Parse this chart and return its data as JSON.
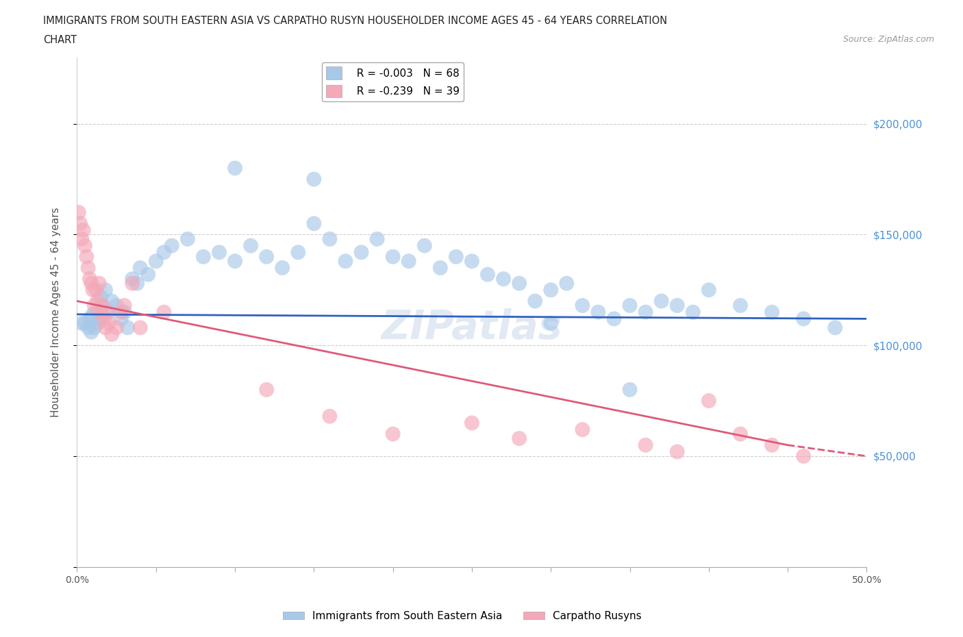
{
  "title_line1": "IMMIGRANTS FROM SOUTH EASTERN ASIA VS CARPATHO RUSYN HOUSEHOLDER INCOME AGES 45 - 64 YEARS CORRELATION",
  "title_line2": "CHART",
  "source": "Source: ZipAtlas.com",
  "ylabel": "Householder Income Ages 45 - 64 years",
  "legend_blue_label": "Immigrants from South Eastern Asia",
  "legend_pink_label": "Carpatho Rusyns",
  "legend_blue_R": "R = -0.003",
  "legend_blue_N": "N = 68",
  "legend_pink_R": "R = -0.239",
  "legend_pink_N": "N = 39",
  "blue_color": "#a8c8e8",
  "pink_color": "#f4a8b8",
  "blue_line_color": "#3060c0",
  "pink_line_color": "#e05878",
  "watermark": "ZIPatlas",
  "xlim": [
    0.0,
    0.5
  ],
  "ylim": [
    0,
    230000
  ],
  "yticks": [
    0,
    50000,
    100000,
    150000,
    200000
  ],
  "ytick_labels": [
    "",
    "$50,000",
    "$100,000",
    "$150,000",
    "$200,000"
  ],
  "xticks": [
    0.0,
    0.05,
    0.1,
    0.15,
    0.2,
    0.25,
    0.3,
    0.35,
    0.4,
    0.45,
    0.5
  ],
  "xtick_labels": [
    "0.0%",
    "",
    "",
    "",
    "",
    "",
    "",
    "",
    "",
    "",
    "50.0%"
  ],
  "grid_color": "#cccccc",
  "background_color": "#ffffff",
  "tick_label_color": "#4a90d9",
  "blue_scatter_x": [
    0.003,
    0.005,
    0.007,
    0.008,
    0.009,
    0.01,
    0.011,
    0.012,
    0.013,
    0.014,
    0.015,
    0.016,
    0.018,
    0.02,
    0.022,
    0.025,
    0.028,
    0.03,
    0.032,
    0.035,
    0.038,
    0.04,
    0.045,
    0.05,
    0.055,
    0.06,
    0.07,
    0.08,
    0.09,
    0.1,
    0.11,
    0.12,
    0.13,
    0.14,
    0.15,
    0.16,
    0.17,
    0.18,
    0.19,
    0.2,
    0.21,
    0.22,
    0.23,
    0.24,
    0.25,
    0.26,
    0.27,
    0.28,
    0.29,
    0.3,
    0.31,
    0.32,
    0.33,
    0.34,
    0.35,
    0.36,
    0.37,
    0.38,
    0.39,
    0.4,
    0.42,
    0.44,
    0.46,
    0.48,
    0.3,
    0.35,
    0.1,
    0.15
  ],
  "blue_scatter_y": [
    110000,
    110000,
    108000,
    112000,
    106000,
    114000,
    108000,
    115000,
    110000,
    112000,
    122000,
    118000,
    125000,
    115000,
    120000,
    118000,
    112000,
    115000,
    108000,
    130000,
    128000,
    135000,
    132000,
    138000,
    142000,
    145000,
    148000,
    140000,
    142000,
    138000,
    145000,
    140000,
    135000,
    142000,
    155000,
    148000,
    138000,
    142000,
    148000,
    140000,
    138000,
    145000,
    135000,
    140000,
    138000,
    132000,
    130000,
    128000,
    120000,
    125000,
    128000,
    118000,
    115000,
    112000,
    118000,
    115000,
    120000,
    118000,
    115000,
    125000,
    118000,
    115000,
    112000,
    108000,
    110000,
    80000,
    180000,
    175000
  ],
  "pink_scatter_x": [
    0.001,
    0.002,
    0.003,
    0.004,
    0.005,
    0.006,
    0.007,
    0.008,
    0.009,
    0.01,
    0.011,
    0.012,
    0.013,
    0.014,
    0.015,
    0.016,
    0.017,
    0.018,
    0.019,
    0.02,
    0.022,
    0.025,
    0.028,
    0.03,
    0.035,
    0.04,
    0.055,
    0.12,
    0.16,
    0.2,
    0.25,
    0.28,
    0.32,
    0.36,
    0.38,
    0.4,
    0.42,
    0.44,
    0.46
  ],
  "pink_scatter_y": [
    160000,
    155000,
    148000,
    152000,
    145000,
    140000,
    135000,
    130000,
    128000,
    125000,
    118000,
    125000,
    120000,
    128000,
    115000,
    118000,
    112000,
    108000,
    115000,
    110000,
    105000,
    108000,
    115000,
    118000,
    128000,
    108000,
    115000,
    80000,
    68000,
    60000,
    65000,
    58000,
    62000,
    55000,
    52000,
    75000,
    60000,
    55000,
    50000
  ],
  "blue_trend_x": [
    0.0,
    0.5
  ],
  "blue_trend_y": [
    114000,
    112000
  ],
  "pink_trend_x": [
    0.0,
    0.45
  ],
  "pink_trend_y": [
    120000,
    55000
  ]
}
